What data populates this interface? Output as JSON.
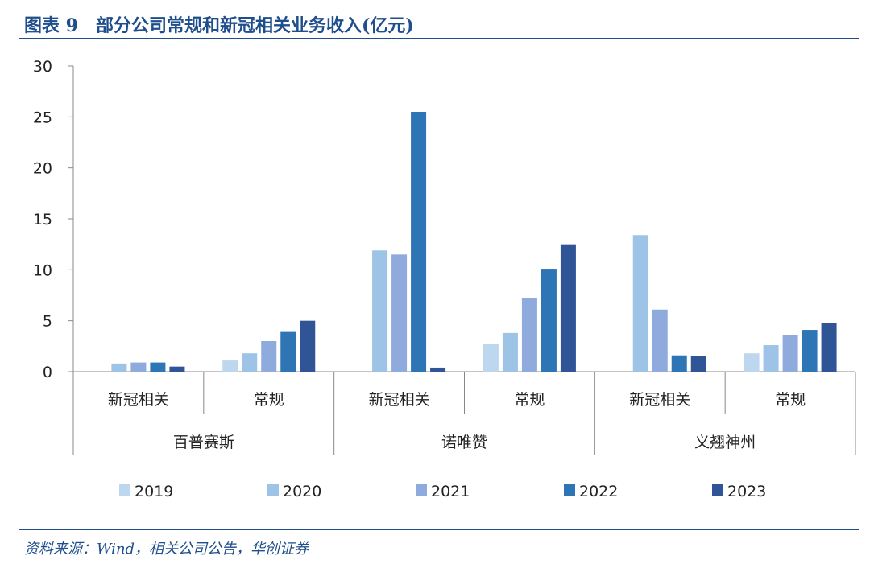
{
  "header": {
    "title": "图表 9　部分公司常规和新冠相关业务收入(亿元)"
  },
  "footer": {
    "source": "资料来源：Wind，相关公司公告，华创证券"
  },
  "chart_data": {
    "type": "bar",
    "groups": [
      {
        "company": "百普赛斯",
        "categories": [
          "新冠相关",
          "常规"
        ]
      },
      {
        "company": "诺唯赞",
        "categories": [
          "新冠相关",
          "常规"
        ]
      },
      {
        "company": "义翘神州",
        "categories": [
          "新冠相关",
          "常规"
        ]
      }
    ],
    "categories": [
      "新冠相关",
      "常规",
      "新冠相关",
      "常规",
      "新冠相关",
      "常规"
    ],
    "series": [
      {
        "name": "2019",
        "color": "#bdd7ee",
        "values": [
          0,
          1.1,
          0,
          2.7,
          0,
          1.8
        ]
      },
      {
        "name": "2020",
        "color": "#9dc3e6",
        "values": [
          0.8,
          1.8,
          11.9,
          3.8,
          13.4,
          2.6
        ]
      },
      {
        "name": "2021",
        "color": "#8faadc",
        "values": [
          0.9,
          3.0,
          11.5,
          7.2,
          6.1,
          3.6
        ]
      },
      {
        "name": "2022",
        "color": "#2e75b6",
        "values": [
          0.9,
          3.9,
          25.5,
          10.1,
          1.6,
          4.1
        ]
      },
      {
        "name": "2023",
        "color": "#2f5597",
        "values": [
          0.5,
          5.0,
          0.4,
          12.5,
          1.5,
          4.8
        ]
      }
    ],
    "ylim": [
      0,
      30
    ],
    "yticks": [
      0,
      5,
      10,
      15,
      20,
      25,
      30
    ],
    "legend": "bottom",
    "grid": false
  }
}
